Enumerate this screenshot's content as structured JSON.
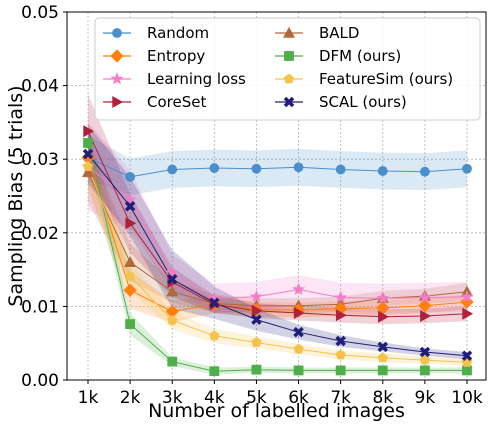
{
  "chart_data": {
    "type": "line",
    "title": "",
    "xlabel": "Number of labelled images",
    "ylabel": "Sampling Bias (5 trials)",
    "categories": [
      "1k",
      "2k",
      "3k",
      "4k",
      "5k",
      "6k",
      "7k",
      "8k",
      "9k",
      "10k"
    ],
    "ylim": [
      0,
      0.05
    ],
    "yticks": [
      "0.00",
      "0.01",
      "0.02",
      "0.03",
      "0.04",
      "0.05"
    ],
    "yticks_values": [
      0,
      0.01,
      0.02,
      0.03,
      0.04,
      0.05
    ],
    "grid": true,
    "legend_position": "top",
    "series": [
      {
        "name": "Random",
        "color": "#4a8fcc",
        "marker": "circle",
        "values": [
          0.0302,
          0.0276,
          0.0286,
          0.0288,
          0.0287,
          0.0289,
          0.0286,
          0.0284,
          0.0283,
          0.0287
        ],
        "band": [
          0.003,
          0.0025,
          0.0025,
          0.0025,
          0.0025,
          0.0025,
          0.0025,
          0.0025,
          0.0025,
          0.0025
        ]
      },
      {
        "name": "BALD",
        "color": "#b06a3a",
        "marker": "triangle-up",
        "values": [
          0.0282,
          0.016,
          0.012,
          0.0104,
          0.0101,
          0.0101,
          0.0103,
          0.0111,
          0.0114,
          0.012
        ],
        "band": [
          0.004,
          0.0025,
          0.0015,
          0.0012,
          0.001,
          0.001,
          0.001,
          0.001,
          0.001,
          0.0012
        ]
      },
      {
        "name": "Entropy",
        "color": "#ff7f0e",
        "marker": "diamond",
        "values": [
          0.0302,
          0.0122,
          0.0093,
          0.0103,
          0.0096,
          0.0095,
          0.0097,
          0.0098,
          0.0101,
          0.0106
        ],
        "band": [
          0.004,
          0.0025,
          0.0015,
          0.0012,
          0.001,
          0.001,
          0.001,
          0.001,
          0.001,
          0.001
        ]
      },
      {
        "name": "DFM (ours)",
        "color": "#4daf4a",
        "marker": "square",
        "values": [
          0.0322,
          0.0076,
          0.0025,
          0.0012,
          0.0014,
          0.0013,
          0.0013,
          0.0013,
          0.0013,
          0.0013
        ],
        "band": [
          0.002,
          0.0015,
          0.0006,
          0.0005,
          0.0004,
          0.0004,
          0.0004,
          0.0004,
          0.0004,
          0.0004
        ]
      },
      {
        "name": "Learning loss",
        "color": "#f07fc6",
        "marker": "star",
        "values": [
          0.029,
          0.0245,
          0.0146,
          0.0111,
          0.0113,
          0.0123,
          0.0112,
          0.0111,
          0.0112,
          0.0113
        ],
        "band": [
          0.006,
          0.004,
          0.0025,
          0.002,
          0.002,
          0.002,
          0.002,
          0.002,
          0.002,
          0.002
        ]
      },
      {
        "name": "FeatureSim (ours)",
        "color": "#f5c24d",
        "marker": "pentagon",
        "values": [
          0.029,
          0.0141,
          0.0081,
          0.006,
          0.0051,
          0.0042,
          0.0034,
          0.003,
          0.0027,
          0.0024
        ],
        "band": [
          0.003,
          0.002,
          0.0012,
          0.001,
          0.0008,
          0.0007,
          0.0006,
          0.0006,
          0.0005,
          0.0005
        ]
      },
      {
        "name": "CoreSet",
        "color": "#b0213b",
        "marker": "triangle-right",
        "values": [
          0.0338,
          0.0213,
          0.0133,
          0.0103,
          0.0094,
          0.0091,
          0.0088,
          0.0086,
          0.0087,
          0.009
        ],
        "band": [
          0.005,
          0.004,
          0.002,
          0.0012,
          0.001,
          0.001,
          0.001,
          0.001,
          0.001,
          0.001
        ]
      },
      {
        "name": "SCAL (ours)",
        "color": "#1f1f7a",
        "marker": "x",
        "values": [
          0.0307,
          0.0236,
          0.0137,
          0.0105,
          0.0082,
          0.0065,
          0.0053,
          0.0045,
          0.0038,
          0.0033
        ],
        "band": [
          0.004,
          0.004,
          0.004,
          0.0022,
          0.0015,
          0.001,
          0.0008,
          0.0006,
          0.0005,
          0.0005
        ]
      }
    ]
  }
}
